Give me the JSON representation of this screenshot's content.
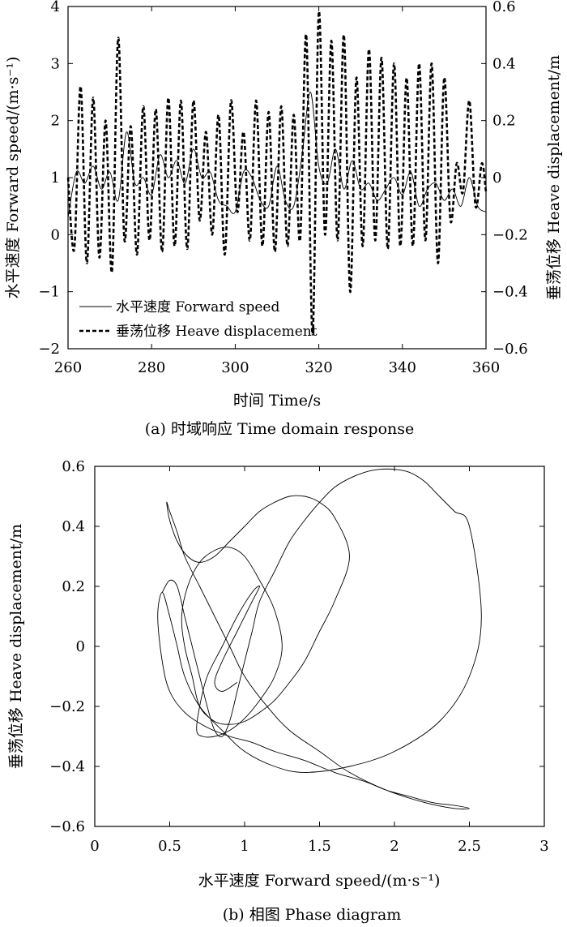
{
  "chart_data": [
    {
      "type": "line",
      "caption": "(a) 时域响应 Time domain response",
      "xlabel": "时间 Time/s",
      "ylabel_left": "水平速度 Forward speed/(m·s⁻¹)",
      "ylabel_right": "垂荡位移 Heave displacement/m",
      "xlim": [
        260,
        360
      ],
      "ylim_left": [
        -2,
        4
      ],
      "ylim_right": [
        -0.6,
        0.6
      ],
      "xticks": [
        "260",
        "280",
        "300",
        "320",
        "340",
        "360"
      ],
      "yticks_left": [
        "4",
        "3",
        "2",
        "1",
        "0",
        "−1",
        "−2"
      ],
      "yticks_right": [
        "0.6",
        "0.4",
        "0.2",
        "0",
        "−0.2",
        "−0.4",
        "−0.6"
      ],
      "legend": [
        "水平速度 Forward speed",
        "垂荡位移 Heave displacement"
      ],
      "legend_position": "bottom-left",
      "series": [
        {
          "name": "水平速度 Forward speed",
          "axis": "left",
          "style": "solid",
          "x": [
            260,
            262,
            264,
            266,
            268,
            270,
            272,
            274,
            276,
            278,
            280,
            282,
            284,
            286,
            288,
            290,
            292,
            294,
            296,
            298,
            300,
            302,
            304,
            306,
            308,
            310,
            312,
            314,
            316,
            318,
            320,
            322,
            324,
            326,
            328,
            330,
            332,
            334,
            336,
            338,
            340,
            342,
            344,
            346,
            348,
            350,
            352,
            354,
            356,
            358,
            360
          ],
          "values": [
            0.3,
            1.1,
            0.9,
            1.2,
            0.8,
            1.1,
            0.6,
            1.8,
            0.9,
            1.0,
            0.7,
            1.4,
            1.0,
            1.3,
            0.9,
            1.5,
            1.0,
            1.1,
            0.6,
            0.5,
            0.4,
            1.1,
            1.0,
            0.6,
            0.5,
            1.2,
            0.6,
            0.5,
            1.4,
            2.5,
            1.2,
            0.9,
            1.5,
            0.8,
            1.3,
            0.8,
            0.9,
            0.6,
            0.8,
            1.0,
            0.7,
            1.1,
            0.5,
            0.8,
            0.9,
            0.6,
            0.8,
            0.5,
            1.0,
            0.5,
            0.4
          ]
        },
        {
          "name": "垂荡位移 Heave displacement",
          "axis": "right",
          "style": "dashed",
          "x": [
            260,
            261.5,
            263,
            264.5,
            266,
            267.5,
            269,
            270.5,
            272,
            273.5,
            275,
            276.5,
            278,
            279.5,
            281,
            282.5,
            284,
            285.5,
            287,
            288.5,
            290,
            291.5,
            293,
            294.5,
            296,
            297.5,
            299,
            300.5,
            302,
            303.5,
            305,
            306.5,
            308,
            309.5,
            311,
            312.5,
            314,
            315.5,
            317,
            318.5,
            320,
            321.5,
            323,
            324.5,
            326,
            327.5,
            329,
            330.5,
            332,
            333.5,
            335,
            336.5,
            338,
            339.5,
            341,
            342.5,
            344,
            345.5,
            347,
            348.5,
            350,
            351.5,
            353,
            354.5,
            356,
            357.5,
            359,
            360
          ],
          "values": [
            0.0,
            -0.25,
            0.32,
            -0.3,
            0.28,
            -0.28,
            0.2,
            -0.33,
            0.49,
            -0.22,
            0.18,
            -0.27,
            0.25,
            -0.22,
            0.24,
            -0.26,
            0.28,
            -0.24,
            0.27,
            -0.25,
            0.27,
            -0.15,
            0.16,
            -0.2,
            0.22,
            -0.27,
            0.27,
            -0.12,
            0.16,
            -0.22,
            0.27,
            -0.24,
            0.23,
            -0.26,
            0.25,
            -0.24,
            0.22,
            -0.22,
            0.5,
            -0.55,
            0.58,
            -0.2,
            0.48,
            -0.22,
            0.5,
            -0.4,
            0.35,
            -0.24,
            0.45,
            -0.22,
            0.42,
            -0.25,
            0.4,
            -0.24,
            0.35,
            -0.24,
            0.4,
            -0.22,
            0.4,
            -0.3,
            0.35,
            -0.15,
            0.05,
            -0.05,
            0.27,
            -0.1,
            0.05,
            -0.05
          ]
        }
      ]
    },
    {
      "type": "line",
      "caption": "(b) 相图 Phase diagram",
      "xlabel": "水平速度 Forward speed/(m·s⁻¹)",
      "ylabel": "垂荡位移 Heave displacement/m",
      "xlim": [
        0,
        3
      ],
      "ylim": [
        -0.6,
        0.6
      ],
      "xticks": [
        "0",
        "0.5",
        "1",
        "1.5",
        "2",
        "2.5",
        "3"
      ],
      "yticks": [
        "0.6",
        "0.4",
        "0.2",
        "0",
        "−0.2",
        "−0.4",
        "−0.6"
      ],
      "series": [
        {
          "style": "solid",
          "x": [
            0.45,
            0.5,
            0.55,
            0.6,
            0.65,
            0.7,
            0.75,
            0.8,
            0.85,
            0.9,
            0.95,
            1.0,
            1.05,
            1.1,
            1.2,
            1.3,
            1.4,
            1.5,
            1.6,
            1.7,
            1.8,
            1.9,
            2.0,
            2.1,
            2.2,
            2.3,
            2.4,
            2.5,
            2.58,
            2.5,
            2.3,
            2.0,
            1.7,
            1.4,
            1.2,
            1.0,
            0.85,
            0.7,
            0.6,
            0.55,
            0.5,
            0.45,
            0.42,
            0.45,
            0.5,
            0.6,
            0.75,
            0.9,
            1.05,
            1.2,
            1.4,
            1.6,
            1.8,
            1.95,
            2.1,
            2.25,
            2.4,
            2.5,
            2.4,
            2.2,
            1.95,
            1.7,
            1.5,
            1.3,
            1.15,
            1.0,
            0.9,
            0.8,
            0.7,
            0.6,
            0.55,
            0.5,
            0.48,
            0.5,
            0.55,
            0.62,
            0.7,
            0.8,
            0.9,
            1.0,
            1.1,
            1.2,
            1.3,
            1.4,
            1.5,
            1.6,
            1.7,
            1.6,
            1.5,
            1.4,
            1.3,
            1.2,
            1.1,
            1.0,
            0.9,
            0.8,
            0.7,
            0.65,
            0.6,
            0.58,
            0.62,
            0.7,
            0.8,
            0.9,
            1.0,
            1.1,
            1.2,
            1.25,
            1.2,
            1.1,
            1.0,
            0.9,
            0.8,
            0.72,
            0.68,
            0.7,
            0.75,
            0.85,
            0.95,
            1.05,
            1.1,
            1.05,
            0.95,
            0.85,
            0.8,
            0.85,
            0.95
          ],
          "values": [
            0.18,
            0.22,
            0.2,
            0.1,
            0.0,
            -0.1,
            -0.2,
            -0.28,
            -0.3,
            -0.25,
            -0.15,
            -0.05,
            0.05,
            0.15,
            0.25,
            0.35,
            0.42,
            0.48,
            0.53,
            0.56,
            0.58,
            0.59,
            0.59,
            0.58,
            0.55,
            0.5,
            0.45,
            0.4,
            0.1,
            -0.1,
            -0.25,
            -0.35,
            -0.4,
            -0.42,
            -0.4,
            -0.35,
            -0.28,
            -0.2,
            -0.1,
            0.0,
            0.1,
            0.18,
            0.1,
            -0.05,
            -0.15,
            -0.22,
            -0.27,
            -0.3,
            -0.32,
            -0.35,
            -0.38,
            -0.42,
            -0.45,
            -0.48,
            -0.5,
            -0.52,
            -0.53,
            -0.54,
            -0.54,
            -0.52,
            -0.48,
            -0.42,
            -0.35,
            -0.28,
            -0.2,
            -0.1,
            0.0,
            0.1,
            0.2,
            0.3,
            0.38,
            0.45,
            0.48,
            0.42,
            0.35,
            0.3,
            0.28,
            0.3,
            0.35,
            0.4,
            0.45,
            0.48,
            0.5,
            0.5,
            0.48,
            0.43,
            0.3,
            0.15,
            0.05,
            -0.05,
            -0.12,
            -0.18,
            -0.22,
            -0.25,
            -0.26,
            -0.25,
            -0.2,
            -0.1,
            0.0,
            0.1,
            0.2,
            0.28,
            0.32,
            0.33,
            0.3,
            0.22,
            0.12,
            0.0,
            -0.1,
            -0.18,
            -0.24,
            -0.28,
            -0.3,
            -0.3,
            -0.28,
            -0.2,
            -0.1,
            0.0,
            0.1,
            0.18,
            0.2,
            0.15,
            0.05,
            -0.05,
            -0.12,
            -0.15,
            -0.12
          ]
        }
      ]
    }
  ]
}
